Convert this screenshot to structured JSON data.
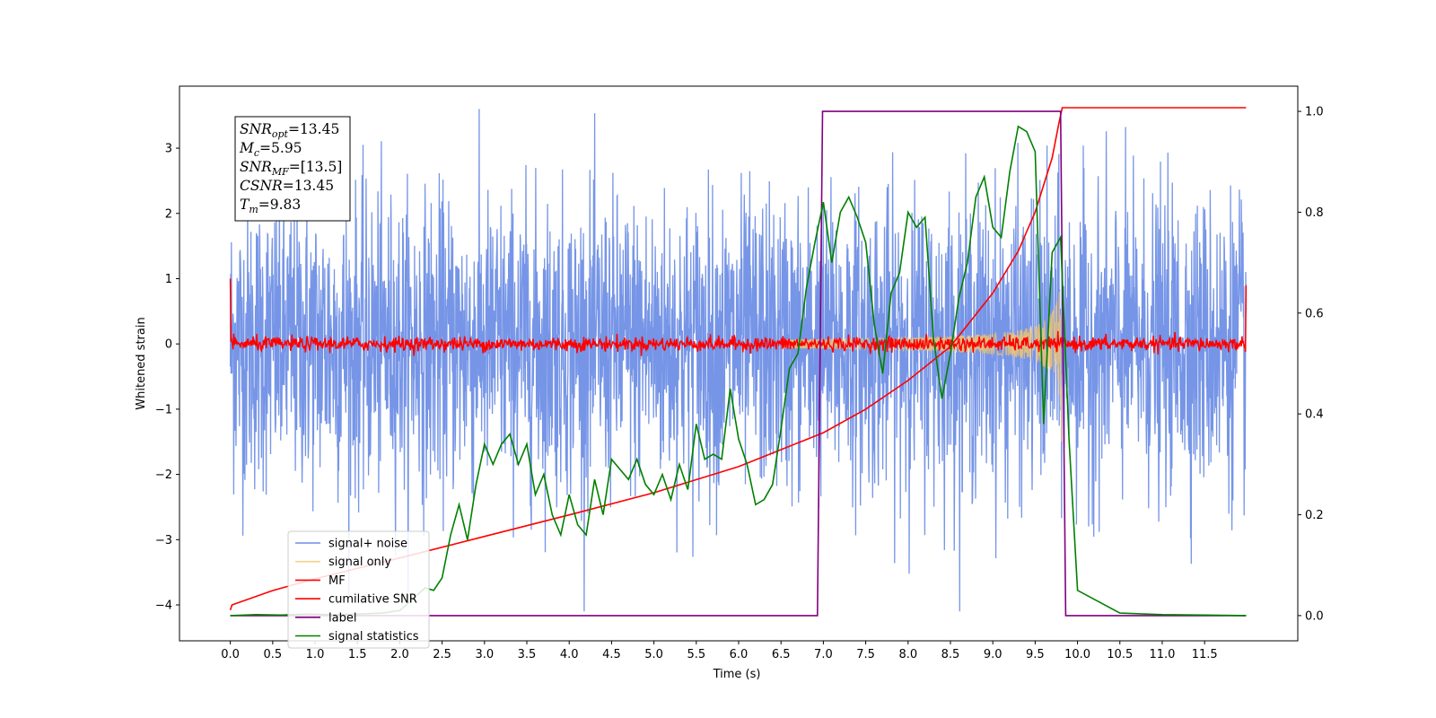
{
  "chart_data": {
    "type": "line",
    "xlabel": "Time (s)",
    "ylabel": "Whitened strain",
    "xlim": [
      -0.6,
      12.6
    ],
    "ylim": [
      -4.55,
      3.95
    ],
    "y2lim": [
      -0.05,
      1.05
    ],
    "xticks": [
      "0.0",
      "0.5",
      "1.0",
      "1.5",
      "2.0",
      "2.5",
      "3.0",
      "3.5",
      "4.0",
      "4.5",
      "5.0",
      "5.5",
      "6.0",
      "6.5",
      "7.0",
      "7.5",
      "8.0",
      "8.5",
      "9.0",
      "9.5",
      "10.0",
      "10.5",
      "11.0",
      "11.5"
    ],
    "yticks": [
      "3",
      "2",
      "1",
      "0",
      "−1",
      "−2",
      "−3",
      "−4"
    ],
    "y2ticks": [
      "1.0",
      "0.8",
      "0.6",
      "0.4",
      "0.2",
      "0.0"
    ],
    "colors": {
      "signal_noise": "#6f8fe6",
      "signal_only": "#f5c56e",
      "mf": "#ff0000",
      "cumulative_snr": "#ff0000",
      "label": "#800080",
      "signal_statistics": "#008000"
    },
    "info_box": [
      {
        "base": "SNR",
        "sub": "opt",
        "value": "=13.45"
      },
      {
        "base": "M",
        "sub": "c",
        "value": "=5.95"
      },
      {
        "base": "SNR",
        "sub": "MF",
        "value": "=[13.5]"
      },
      {
        "base": "CSNR",
        "sub": "",
        "value": "=13.45"
      },
      {
        "base": "T",
        "sub": "m",
        "value": "=9.83"
      }
    ],
    "legend": [
      "signal+ noise",
      "signal only",
      "MF",
      "cumilative SNR",
      "label",
      "signal statistics"
    ],
    "series": {
      "label": {
        "axis": "right",
        "x": [
          0.0,
          6.93,
          6.99,
          9.8,
          9.86,
          11.99
        ],
        "y": [
          0.0,
          0.0,
          1.0,
          1.0,
          0.0,
          0.0
        ]
      },
      "cumulative_snr": {
        "axis": "left",
        "x": [
          0.0,
          0.02,
          0.5,
          1.0,
          2.0,
          3.0,
          4.0,
          5.0,
          6.0,
          6.5,
          7.0,
          7.5,
          8.0,
          8.5,
          9.0,
          9.3,
          9.5,
          9.7,
          9.78,
          9.82,
          11.99
        ],
        "y": [
          -4.08,
          -4.0,
          -3.78,
          -3.6,
          -3.28,
          -2.95,
          -2.62,
          -2.28,
          -1.88,
          -1.62,
          -1.36,
          -1.0,
          -0.56,
          -0.04,
          0.78,
          1.42,
          2.02,
          2.85,
          3.38,
          3.62,
          3.62
        ]
      },
      "signal_statistics": {
        "axis": "right",
        "x": [
          0.0,
          0.3,
          0.6,
          0.9,
          1.2,
          1.5,
          1.8,
          2.0,
          2.1,
          2.2,
          2.3,
          2.4,
          2.5,
          2.6,
          2.7,
          2.8,
          2.9,
          3.0,
          3.1,
          3.2,
          3.3,
          3.4,
          3.5,
          3.6,
          3.7,
          3.8,
          3.9,
          4.0,
          4.1,
          4.2,
          4.3,
          4.4,
          4.5,
          4.6,
          4.7,
          4.8,
          4.9,
          5.0,
          5.1,
          5.2,
          5.3,
          5.4,
          5.5,
          5.6,
          5.7,
          5.8,
          5.9,
          6.0,
          6.1,
          6.2,
          6.3,
          6.4,
          6.5,
          6.6,
          6.7,
          6.8,
          6.9,
          7.0,
          7.1,
          7.2,
          7.3,
          7.4,
          7.5,
          7.6,
          7.7,
          7.8,
          7.9,
          8.0,
          8.1,
          8.2,
          8.3,
          8.4,
          8.5,
          8.6,
          8.7,
          8.8,
          8.9,
          9.0,
          9.1,
          9.2,
          9.3,
          9.4,
          9.5,
          9.6,
          9.7,
          9.8,
          9.9,
          10.0,
          10.5,
          11.0,
          11.5,
          11.99
        ],
        "y": [
          0.0,
          0.002,
          0.001,
          0.003,
          0.002,
          0.003,
          0.005,
          0.01,
          0.025,
          0.04,
          0.055,
          0.05,
          0.075,
          0.16,
          0.22,
          0.15,
          0.26,
          0.34,
          0.3,
          0.34,
          0.36,
          0.3,
          0.34,
          0.24,
          0.28,
          0.2,
          0.16,
          0.24,
          0.18,
          0.16,
          0.27,
          0.2,
          0.31,
          0.29,
          0.27,
          0.31,
          0.26,
          0.24,
          0.28,
          0.23,
          0.3,
          0.25,
          0.38,
          0.31,
          0.32,
          0.31,
          0.45,
          0.35,
          0.3,
          0.22,
          0.23,
          0.26,
          0.37,
          0.49,
          0.52,
          0.65,
          0.74,
          0.82,
          0.7,
          0.8,
          0.83,
          0.79,
          0.74,
          0.58,
          0.48,
          0.64,
          0.68,
          0.8,
          0.77,
          0.79,
          0.55,
          0.43,
          0.52,
          0.63,
          0.7,
          0.83,
          0.87,
          0.77,
          0.75,
          0.88,
          0.97,
          0.96,
          0.92,
          0.38,
          0.72,
          0.75,
          0.35,
          0.05,
          0.005,
          0.002,
          0.001,
          0.0
        ]
      }
    }
  }
}
